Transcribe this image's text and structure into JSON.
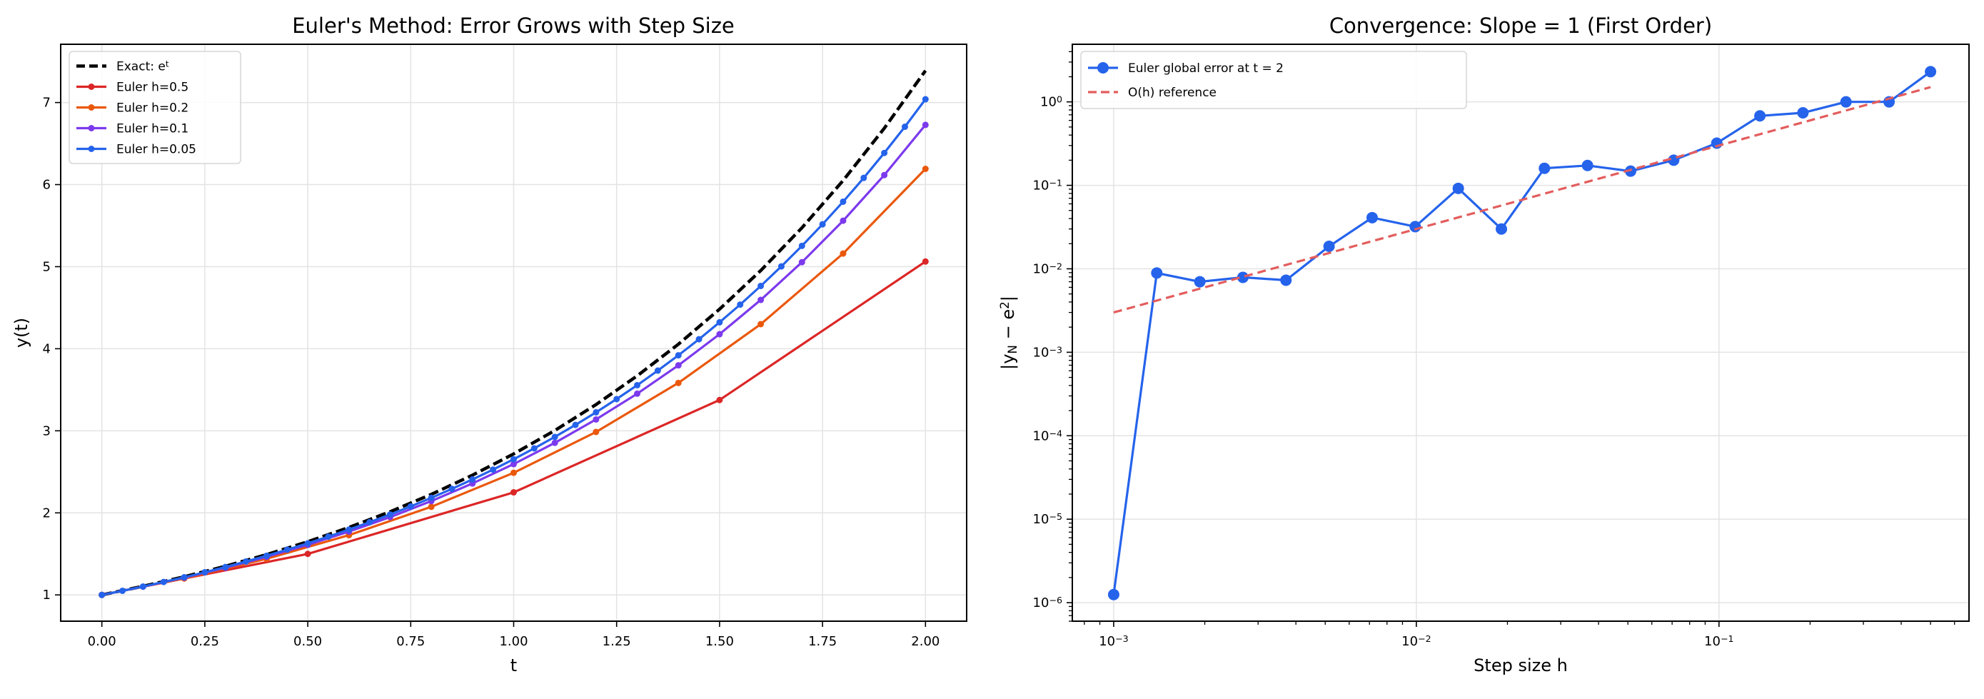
{
  "chart_data": [
    {
      "type": "line",
      "title": "Euler's Method: Error Grows with Step Size",
      "xlabel": "t",
      "ylabel": "y(t)",
      "xlim": [
        -0.1,
        2.1
      ],
      "ylim": [
        0.68,
        7.71
      ],
      "xticks": [
        "0.00",
        "0.25",
        "0.50",
        "0.75",
        "1.00",
        "1.25",
        "1.50",
        "1.75",
        "2.00"
      ],
      "yticks": [
        "1",
        "2",
        "3",
        "4",
        "5",
        "6",
        "7"
      ],
      "grid": true,
      "legend": "top-left",
      "series": [
        {
          "name": "Exact: e^t",
          "color": "#000000",
          "style": "dashed",
          "markers": false,
          "x": [
            0,
            0.1,
            0.2,
            0.3,
            0.4,
            0.5,
            0.6,
            0.7,
            0.8,
            0.9,
            1.0,
            1.1,
            1.2,
            1.3,
            1.4,
            1.5,
            1.6,
            1.7,
            1.8,
            1.9,
            2.0
          ],
          "y": [
            1,
            1.10517,
            1.2214,
            1.34986,
            1.49182,
            1.64872,
            1.82212,
            2.01375,
            2.22554,
            2.4596,
            2.71828,
            3.00417,
            3.32012,
            3.6693,
            4.0552,
            4.48169,
            4.95303,
            5.47395,
            6.04965,
            6.68589,
            7.38906
          ]
        },
        {
          "name": "Euler h=0.5",
          "color": "#dc2626",
          "style": "solid",
          "markers": true,
          "x": [
            0,
            0.5,
            1.0,
            1.5,
            2.0
          ],
          "y": [
            1,
            1.5,
            2.25,
            3.375,
            5.0625
          ]
        },
        {
          "name": "Euler h=0.2",
          "color": "#ea580c",
          "style": "solid",
          "markers": true,
          "x": [
            0,
            0.2,
            0.4,
            0.6,
            0.8,
            1.0,
            1.2,
            1.4,
            1.6,
            1.8,
            2.0
          ],
          "y": [
            1,
            1.2,
            1.44,
            1.728,
            2.0736,
            2.48832,
            2.985984,
            3.583181,
            4.299817,
            5.15978,
            6.191736
          ]
        },
        {
          "name": "Euler h=0.1",
          "color": "#7c3aed",
          "style": "solid",
          "markers": true,
          "x": [
            0,
            0.1,
            0.2,
            0.3,
            0.4,
            0.5,
            0.6,
            0.7,
            0.8,
            0.9,
            1.0,
            1.1,
            1.2,
            1.3,
            1.4,
            1.5,
            1.6,
            1.7,
            1.8,
            1.9,
            2.0
          ],
          "y": [
            1,
            1.1,
            1.21,
            1.331,
            1.4641,
            1.61051,
            1.771561,
            1.948717,
            2.143589,
            2.357948,
            2.593742,
            2.853117,
            3.138428,
            3.452271,
            3.797498,
            4.177248,
            4.594973,
            5.05447,
            5.559917,
            6.115909,
            6.7275
          ]
        },
        {
          "name": "Euler h=0.05",
          "color": "#2563eb",
          "style": "solid",
          "markers": true,
          "x": [
            0,
            0.05,
            0.1,
            0.15,
            0.2,
            0.25,
            0.3,
            0.35,
            0.4,
            0.45,
            0.5,
            0.55,
            0.6,
            0.65,
            0.7,
            0.75,
            0.8,
            0.85,
            0.9,
            0.95,
            1.0,
            1.05,
            1.1,
            1.15,
            1.2,
            1.25,
            1.3,
            1.35,
            1.4,
            1.45,
            1.5,
            1.55,
            1.6,
            1.65,
            1.7,
            1.75,
            1.8,
            1.85,
            1.9,
            1.95,
            2.0
          ],
          "y": [
            1,
            1.05,
            1.1025,
            1.157625,
            1.215506,
            1.276282,
            1.340096,
            1.4071,
            1.477455,
            1.551328,
            1.628895,
            1.710339,
            1.795856,
            1.885649,
            1.979932,
            2.078928,
            2.182875,
            2.292018,
            2.406619,
            2.52695,
            2.653298,
            2.785963,
            2.925261,
            3.071524,
            3.2251,
            3.386355,
            3.555673,
            3.733456,
            3.920129,
            4.116136,
            4.321942,
            4.538039,
            4.764941,
            5.003189,
            5.253348,
            5.516015,
            5.791816,
            6.081407,
            6.385477,
            6.704751,
            7.039989
          ]
        }
      ]
    },
    {
      "type": "line",
      "title": "Convergence: Slope = 1 (First Order)",
      "xlabel": "Step size h",
      "ylabel": "|y_N − e^2|",
      "xscale": "log",
      "yscale": "log",
      "xlim": [
        0.00073,
        0.67
      ],
      "ylim": [
        6e-07,
        4.9
      ],
      "xticks": [
        "10^-3",
        "10^-2",
        "10^-1"
      ],
      "yticks": [
        "10^-6",
        "10^-5",
        "10^-4",
        "10^-3",
        "10^-2",
        "10^-1",
        "10^0"
      ],
      "grid": true,
      "legend": "top-left",
      "series": [
        {
          "name": "Euler global error at t = 2",
          "color": "#2563eb",
          "style": "solid",
          "markers": true,
          "x": [
            0.001,
            0.001388,
            0.001926,
            0.002673,
            0.003709,
            0.005148,
            0.007145,
            0.009915,
            0.01376,
            0.0191,
            0.0265,
            0.03678,
            0.05105,
            0.07085,
            0.09833,
            0.1365,
            0.1894,
            0.2628,
            0.3648,
            0.5
          ],
          "y": [
            1.25e-06,
            0.0089,
            0.007,
            0.0079,
            0.0073,
            0.0186,
            0.041,
            0.032,
            0.092,
            0.03,
            0.16,
            0.173,
            0.148,
            0.2,
            0.32,
            0.68,
            0.74,
            1.0,
            1.0,
            2.3
          ]
        },
        {
          "name": "O(h) reference",
          "color": "#e35d5d",
          "style": "dashed",
          "markers": false,
          "x": [
            0.001,
            0.5
          ],
          "y": [
            0.003,
            1.5
          ]
        }
      ]
    }
  ]
}
